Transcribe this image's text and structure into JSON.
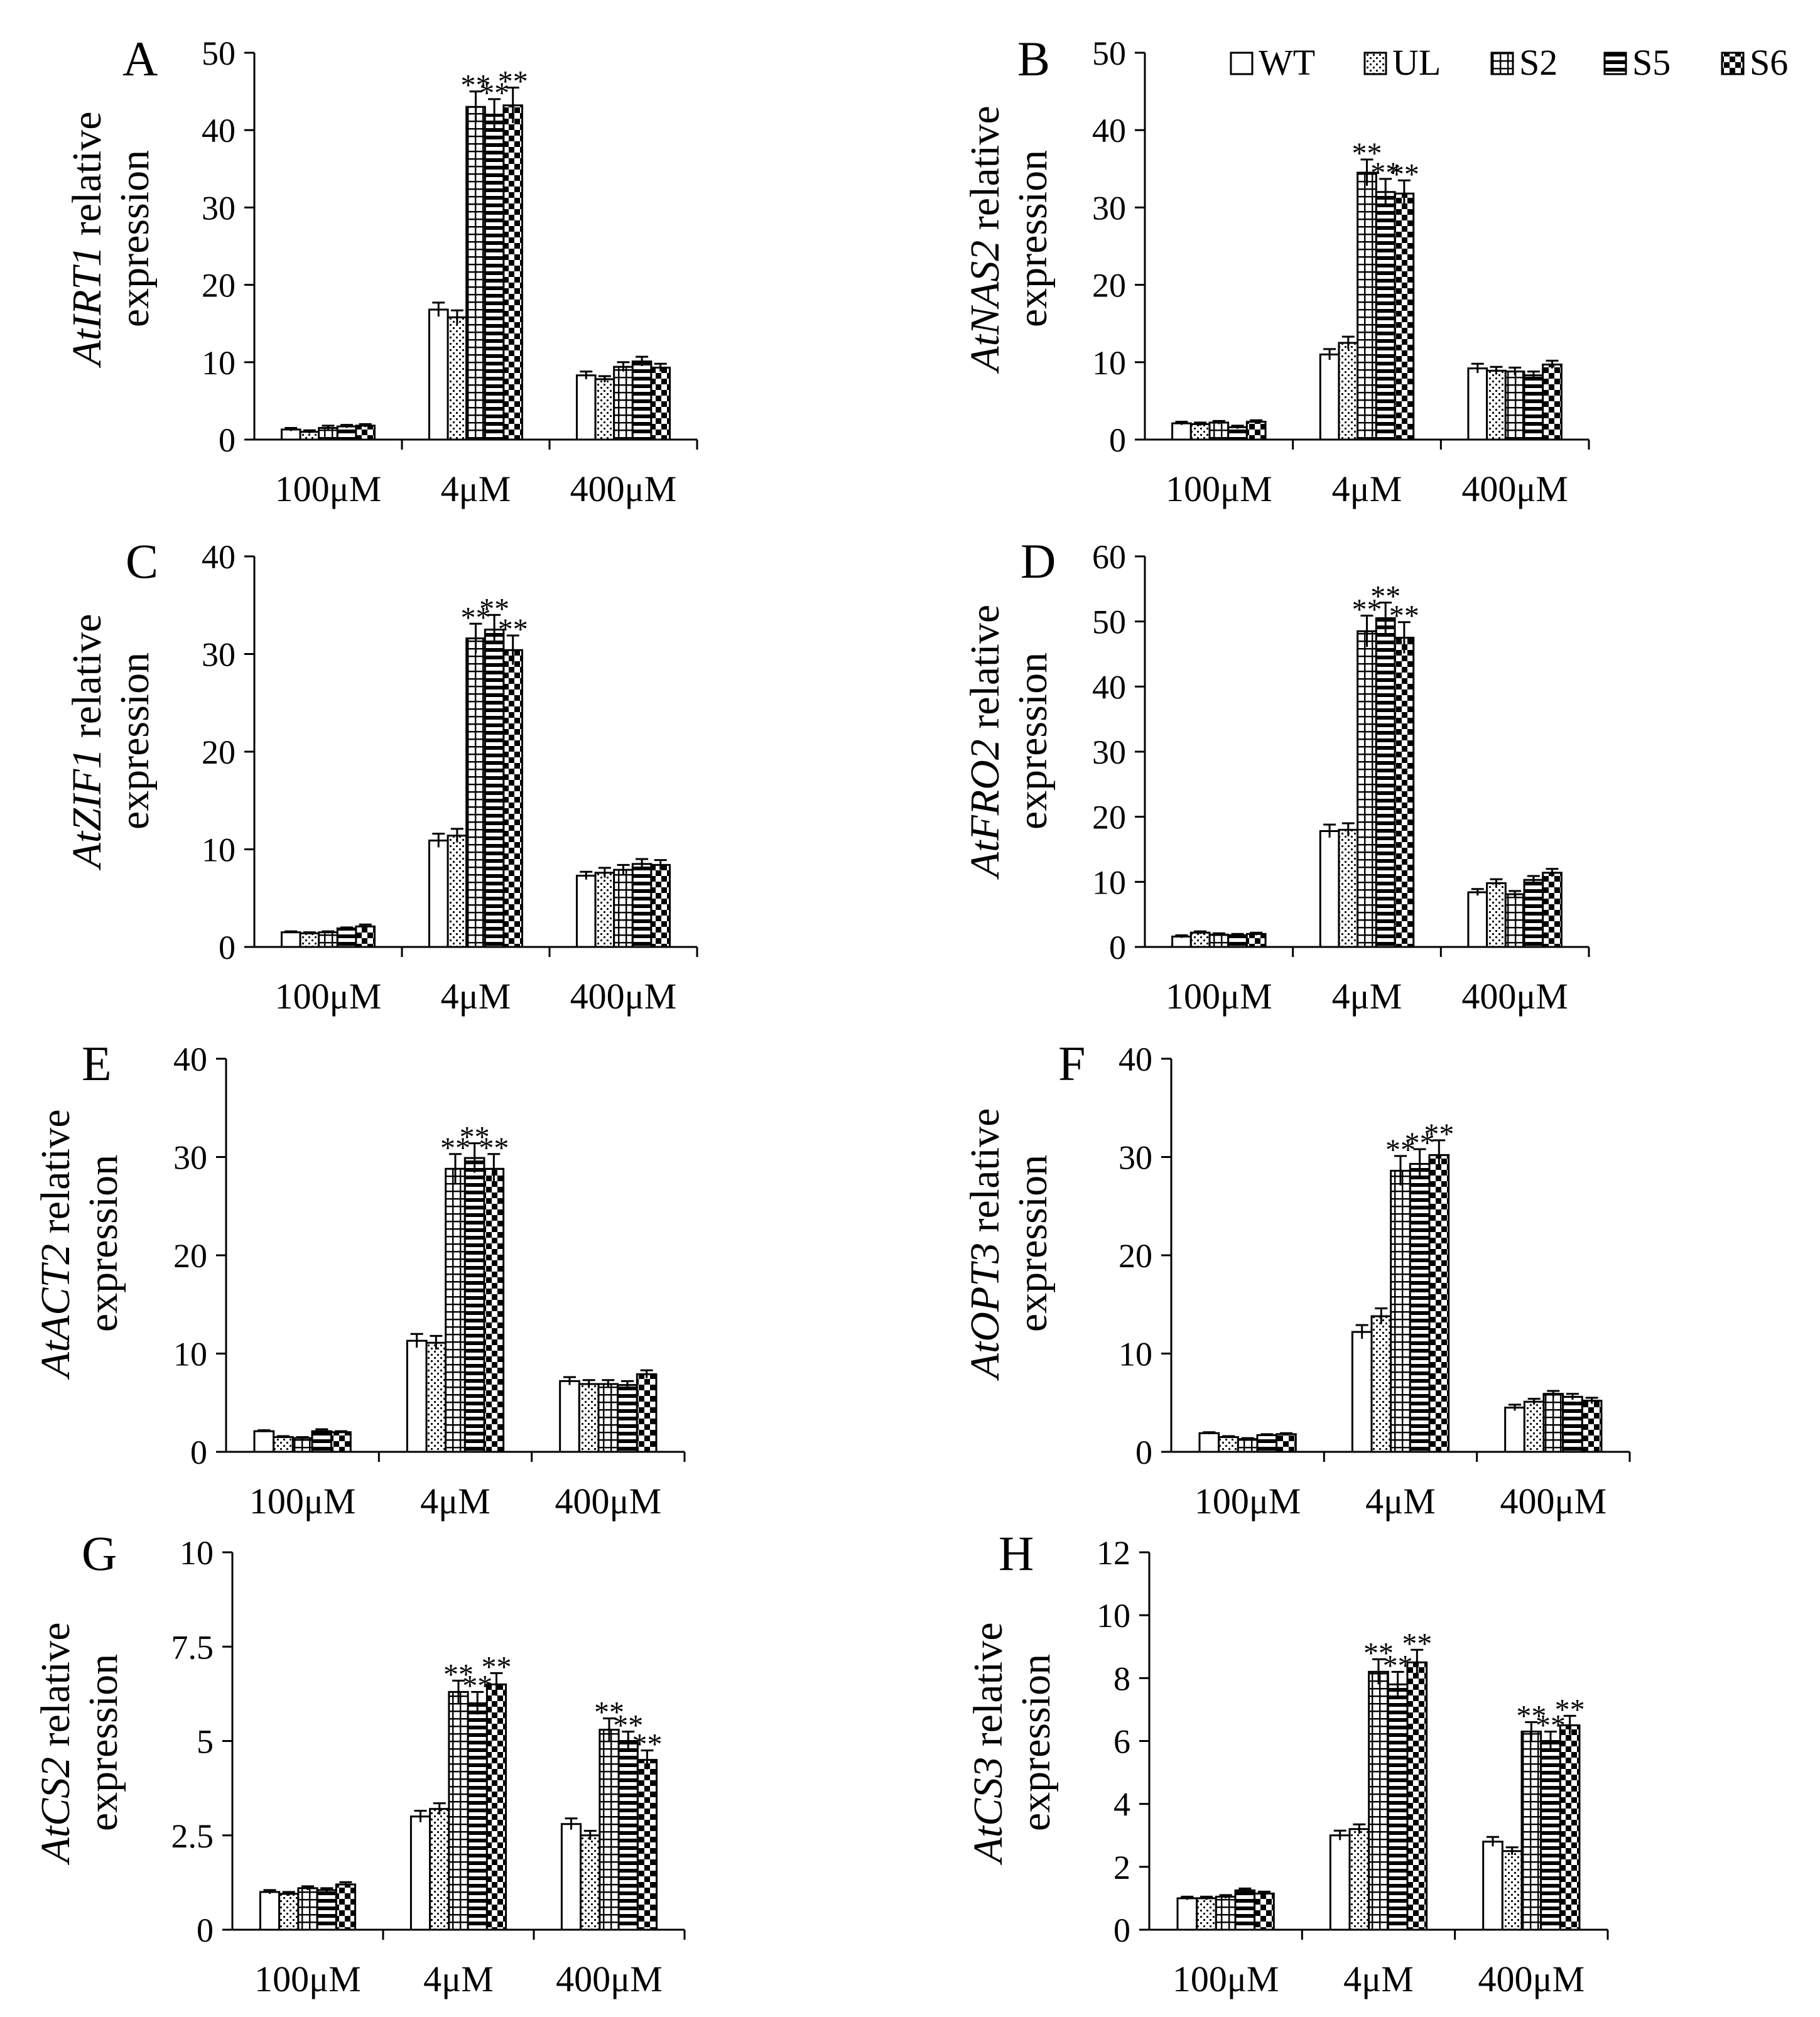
{
  "figure": {
    "series_names": [
      "WT",
      "UL",
      "S2",
      "S5",
      "S6"
    ],
    "categories": [
      "100μM",
      "4μM",
      "400μM"
    ],
    "significance_marker": "**",
    "ylabel_suffix": "relative",
    "ylabel_second_line": "expression"
  },
  "chart_data": [
    {
      "panel": "A",
      "type": "bar",
      "gene": "AtIRT1",
      "categories": [
        "100μM",
        "4μM",
        "400μM"
      ],
      "yticks": [
        "0",
        "10",
        "20",
        "30",
        "40",
        "50"
      ],
      "ylim": [
        0,
        50
      ],
      "series": [
        {
          "name": "WT",
          "values": [
            1.3,
            16.8,
            8.3
          ],
          "errors": [
            0.2,
            0.9,
            0.5
          ]
        },
        {
          "name": "UL",
          "values": [
            1.0,
            15.8,
            7.8
          ],
          "errors": [
            0.2,
            0.9,
            0.4
          ]
        },
        {
          "name": "S2",
          "values": [
            1.5,
            43.0,
            9.4
          ],
          "errors": [
            0.3,
            2.0,
            0.6
          ]
        },
        {
          "name": "S5",
          "values": [
            1.7,
            42.0,
            10.1
          ],
          "errors": [
            0.2,
            2.0,
            0.6
          ]
        },
        {
          "name": "S6",
          "values": [
            1.8,
            43.2,
            9.3
          ],
          "errors": [
            0.2,
            2.3,
            0.5
          ]
        }
      ],
      "significant": [
        [
          false,
          true,
          false
        ],
        [
          false,
          true,
          false
        ],
        [
          false,
          true,
          false
        ]
      ],
      "legend": false
    },
    {
      "panel": "B",
      "type": "bar",
      "gene": "AtNAS2",
      "categories": [
        "100μM",
        "4μM",
        "400μM"
      ],
      "yticks": [
        "0",
        "10",
        "20",
        "30",
        "40",
        "50"
      ],
      "ylim": [
        0,
        50
      ],
      "series": [
        {
          "name": "WT",
          "values": [
            2.1,
            11.0,
            9.2
          ],
          "errors": [
            0.2,
            0.7,
            0.6
          ]
        },
        {
          "name": "UL",
          "values": [
            2.0,
            12.5,
            8.9
          ],
          "errors": [
            0.2,
            0.8,
            0.5
          ]
        },
        {
          "name": "S2",
          "values": [
            2.2,
            34.5,
            8.8
          ],
          "errors": [
            0.2,
            1.7,
            0.5
          ]
        },
        {
          "name": "S5",
          "values": [
            1.6,
            32.0,
            8.3
          ],
          "errors": [
            0.2,
            1.7,
            0.5
          ]
        },
        {
          "name": "S6",
          "values": [
            2.3,
            31.8,
            9.7
          ],
          "errors": [
            0.2,
            1.7,
            0.5
          ]
        }
      ],
      "significant": [
        [
          false,
          true,
          false
        ],
        [
          false,
          true,
          false
        ],
        [
          false,
          true,
          false
        ]
      ],
      "legend": true
    },
    {
      "panel": "C",
      "type": "bar",
      "gene": "AtZIF1",
      "categories": [
        "100μM",
        "4μM",
        "400μM"
      ],
      "yticks": [
        "0",
        "10",
        "20",
        "30",
        "40"
      ],
      "ylim": [
        0,
        40
      ],
      "series": [
        {
          "name": "WT",
          "values": [
            1.5,
            10.9,
            7.3
          ],
          "errors": [
            0.1,
            0.7,
            0.4
          ]
        },
        {
          "name": "UL",
          "values": [
            1.4,
            11.4,
            7.6
          ],
          "errors": [
            0.1,
            0.7,
            0.5
          ]
        },
        {
          "name": "S2",
          "values": [
            1.5,
            31.6,
            7.9
          ],
          "errors": [
            0.1,
            1.5,
            0.5
          ]
        },
        {
          "name": "S5",
          "values": [
            1.9,
            32.5,
            8.5
          ],
          "errors": [
            0.1,
            1.5,
            0.5
          ]
        },
        {
          "name": "S6",
          "values": [
            2.1,
            30.4,
            8.4
          ],
          "errors": [
            0.2,
            1.5,
            0.5
          ]
        }
      ],
      "significant": [
        [
          false,
          true,
          false
        ],
        [
          false,
          true,
          false
        ],
        [
          false,
          true,
          false
        ]
      ],
      "legend": false
    },
    {
      "panel": "D",
      "type": "bar",
      "gene": "AtFRO2",
      "categories": [
        "100μM",
        "4μM",
        "400μM"
      ],
      "yticks": [
        "0",
        "10",
        "20",
        "30",
        "40",
        "50",
        "60"
      ],
      "ylim": [
        0,
        60
      ],
      "series": [
        {
          "name": "WT",
          "values": [
            1.6,
            17.8,
            8.4
          ],
          "errors": [
            0.2,
            1.0,
            0.5
          ]
        },
        {
          "name": "UL",
          "values": [
            2.2,
            18.0,
            9.8
          ],
          "errors": [
            0.2,
            1.0,
            0.6
          ]
        },
        {
          "name": "S2",
          "values": [
            1.9,
            48.5,
            8.1
          ],
          "errors": [
            0.2,
            2.4,
            0.5
          ]
        },
        {
          "name": "S5",
          "values": [
            1.8,
            50.5,
            10.3
          ],
          "errors": [
            0.2,
            2.4,
            0.6
          ]
        },
        {
          "name": "S6",
          "values": [
            2.0,
            47.5,
            11.4
          ],
          "errors": [
            0.2,
            2.4,
            0.6
          ]
        }
      ],
      "significant": [
        [
          false,
          true,
          false
        ],
        [
          false,
          true,
          false
        ],
        [
          false,
          true,
          false
        ]
      ],
      "legend": false
    },
    {
      "panel": "E",
      "type": "bar",
      "gene": "AtACT2",
      "categories": [
        "100μM",
        "4μM",
        "400μM"
      ],
      "yticks": [
        "0",
        "10",
        "20",
        "30",
        "40"
      ],
      "ylim": [
        0,
        40
      ],
      "series": [
        {
          "name": "WT",
          "values": [
            2.1,
            11.3,
            7.2
          ],
          "errors": [
            0.1,
            0.7,
            0.4
          ]
        },
        {
          "name": "UL",
          "values": [
            1.5,
            11.1,
            6.9
          ],
          "errors": [
            0.1,
            0.7,
            0.4
          ]
        },
        {
          "name": "S2",
          "values": [
            1.4,
            28.8,
            6.9
          ],
          "errors": [
            0.1,
            1.5,
            0.4
          ]
        },
        {
          "name": "S5",
          "values": [
            2.1,
            29.9,
            6.8
          ],
          "errors": [
            0.2,
            1.5,
            0.4
          ]
        },
        {
          "name": "S6",
          "values": [
            2.0,
            28.8,
            7.9
          ],
          "errors": [
            0.1,
            1.5,
            0.4
          ]
        }
      ],
      "significant": [
        [
          false,
          true,
          false
        ],
        [
          false,
          true,
          false
        ],
        [
          false,
          true,
          false
        ]
      ],
      "legend": false
    },
    {
      "panel": "F",
      "type": "bar",
      "gene": "AtOPT3",
      "categories": [
        "100μM",
        "4μM",
        "400μM"
      ],
      "yticks": [
        "0",
        "10",
        "20",
        "30",
        "40"
      ],
      "ylim": [
        0,
        40
      ],
      "series": [
        {
          "name": "WT",
          "values": [
            1.9,
            12.2,
            4.5
          ],
          "errors": [
            0.1,
            0.7,
            0.3
          ]
        },
        {
          "name": "UL",
          "values": [
            1.5,
            13.8,
            5.1
          ],
          "errors": [
            0.1,
            0.8,
            0.3
          ]
        },
        {
          "name": "S2",
          "values": [
            1.3,
            28.6,
            5.9
          ],
          "errors": [
            0.1,
            1.5,
            0.3
          ]
        },
        {
          "name": "S5",
          "values": [
            1.7,
            29.3,
            5.6
          ],
          "errors": [
            0.1,
            1.5,
            0.3
          ]
        },
        {
          "name": "S6",
          "values": [
            1.8,
            30.2,
            5.2
          ],
          "errors": [
            0.1,
            1.5,
            0.3
          ]
        }
      ],
      "significant": [
        [
          false,
          true,
          false
        ],
        [
          false,
          true,
          false
        ],
        [
          false,
          true,
          false
        ]
      ],
      "legend": false
    },
    {
      "panel": "G",
      "type": "bar",
      "gene": "AtCS2",
      "categories": [
        "100μM",
        "4μM",
        "400μM"
      ],
      "yticks": [
        "0",
        "2.5",
        "5",
        "7.5",
        "10"
      ],
      "ylim": [
        0,
        10
      ],
      "series": [
        {
          "name": "WT",
          "values": [
            1.0,
            3.0,
            2.8
          ],
          "errors": [
            0.05,
            0.15,
            0.15
          ]
        },
        {
          "name": "UL",
          "values": [
            0.95,
            3.2,
            2.5
          ],
          "errors": [
            0.05,
            0.15,
            0.12
          ]
        },
        {
          "name": "S2",
          "values": [
            1.1,
            6.3,
            5.3
          ],
          "errors": [
            0.05,
            0.3,
            0.3
          ]
        },
        {
          "name": "S5",
          "values": [
            1.05,
            6.0,
            5.0
          ],
          "errors": [
            0.05,
            0.3,
            0.25
          ]
        },
        {
          "name": "S6",
          "values": [
            1.2,
            6.5,
            4.5
          ],
          "errors": [
            0.06,
            0.3,
            0.25
          ]
        }
      ],
      "significant": [
        [
          false,
          true,
          true
        ],
        [
          false,
          true,
          true
        ],
        [
          false,
          true,
          true
        ]
      ],
      "legend": false
    },
    {
      "panel": "H",
      "type": "bar",
      "gene": "AtCS3",
      "categories": [
        "100μM",
        "4μM",
        "400μM"
      ],
      "yticks": [
        "0",
        "2",
        "4",
        "6",
        "8",
        "10",
        "12"
      ],
      "ylim": [
        0,
        12
      ],
      "series": [
        {
          "name": "WT",
          "values": [
            1.0,
            3.0,
            2.8
          ],
          "errors": [
            0.05,
            0.15,
            0.15
          ]
        },
        {
          "name": "UL",
          "values": [
            1.0,
            3.2,
            2.5
          ],
          "errors": [
            0.05,
            0.15,
            0.12
          ]
        },
        {
          "name": "S2",
          "values": [
            1.05,
            8.2,
            6.3
          ],
          "errors": [
            0.05,
            0.4,
            0.3
          ]
        },
        {
          "name": "S5",
          "values": [
            1.25,
            7.8,
            6.0
          ],
          "errors": [
            0.06,
            0.4,
            0.3
          ]
        },
        {
          "name": "S6",
          "values": [
            1.15,
            8.5,
            6.5
          ],
          "errors": [
            0.06,
            0.4,
            0.3
          ]
        }
      ],
      "significant": [
        [
          false,
          true,
          true
        ],
        [
          false,
          true,
          true
        ],
        [
          false,
          true,
          true
        ]
      ],
      "legend": false
    }
  ]
}
